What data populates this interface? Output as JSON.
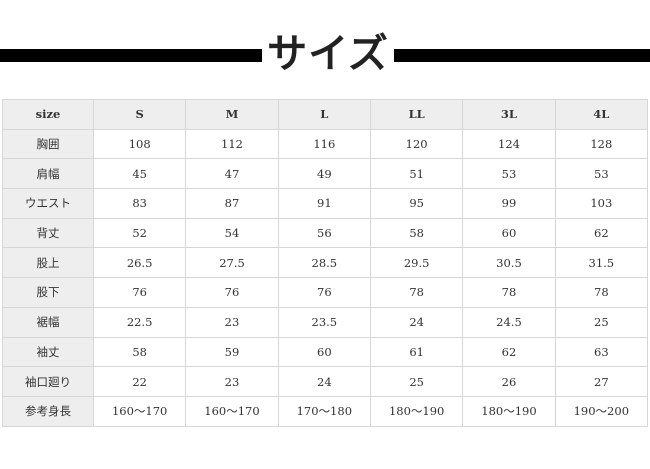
{
  "title": "サイズ",
  "table": {
    "headers": [
      "size",
      "S",
      "M",
      "L",
      "LL",
      "3L",
      "4L"
    ],
    "rows": [
      [
        "胸囲",
        "108",
        "112",
        "116",
        "120",
        "124",
        "128"
      ],
      [
        "肩幅",
        "45",
        "47",
        "49",
        "51",
        "53",
        "53"
      ],
      [
        "ウエスト",
        "83",
        "87",
        "91",
        "95",
        "99",
        "103"
      ],
      [
        "背丈",
        "52",
        "54",
        "56",
        "58",
        "60",
        "62"
      ],
      [
        "股上",
        "26.5",
        "27.5",
        "28.5",
        "29.5",
        "30.5",
        "31.5"
      ],
      [
        "股下",
        "76",
        "76",
        "76",
        "78",
        "78",
        "78"
      ],
      [
        "裾幅",
        "22.5",
        "23",
        "23.5",
        "24",
        "24.5",
        "25"
      ],
      [
        "袖丈",
        "58",
        "59",
        "60",
        "61",
        "62",
        "63"
      ],
      [
        "袖口廻り",
        "22",
        "23",
        "24",
        "25",
        "26",
        "27"
      ],
      [
        "参考身長",
        "160～170",
        "160～170",
        "170～180",
        "180～190",
        "180～190",
        "190～200"
      ]
    ]
  }
}
